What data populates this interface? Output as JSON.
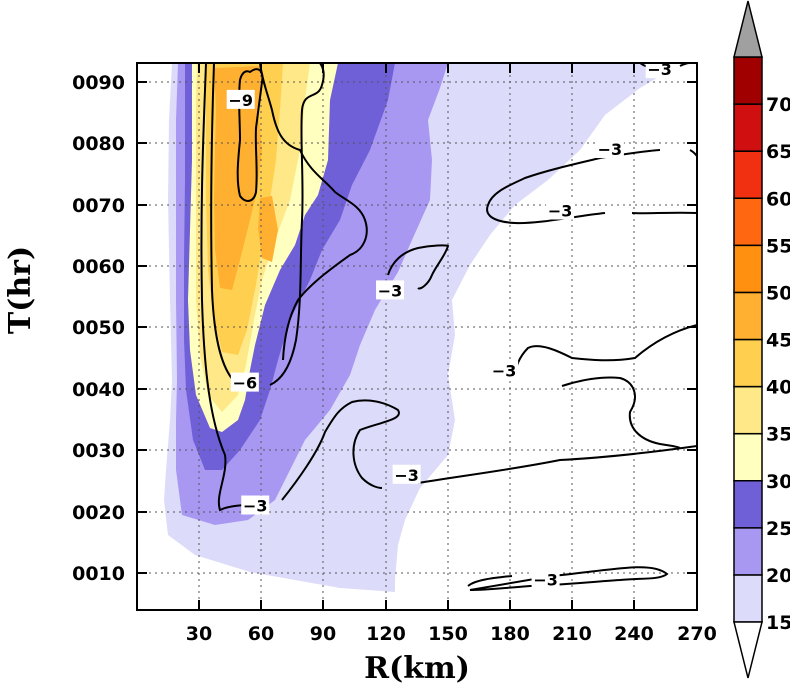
{
  "chart_data": {
    "type": "heatmap",
    "title": "",
    "xlabel": "R(km)",
    "ylabel": "T(hr)",
    "x_ticks": [
      "30",
      "60",
      "90",
      "120",
      "150",
      "180",
      "210",
      "240",
      "270"
    ],
    "y_ticks": [
      "0010",
      "0020",
      "0030",
      "0040",
      "0050",
      "0060",
      "0070",
      "0080",
      "0090"
    ],
    "xlim": [
      0,
      270
    ],
    "ylim": [
      4,
      93
    ],
    "grid": true,
    "colorbar": {
      "levels": [
        "15",
        "20",
        "25",
        "30",
        "35",
        "40",
        "45",
        "50",
        "55",
        "60",
        "65",
        "70"
      ],
      "colors": [
        "#ffffff",
        "#dcdcfa",
        "#a898f2",
        "#7060d8",
        "#ffffc0",
        "#ffe888",
        "#ffd050",
        "#ffb030",
        "#ff9010",
        "#ff6810",
        "#f03010",
        "#d01010",
        "#a00000",
        "#a0a0a0"
      ],
      "extend": "both"
    },
    "filled_bands": [
      {
        "threshold": "15",
        "color": "#dcdcfa"
      },
      {
        "threshold": "20",
        "color": "#a898f2"
      },
      {
        "threshold": "25",
        "color": "#7060d8"
      },
      {
        "threshold": "30",
        "color": "#ffffc0"
      },
      {
        "threshold": "35",
        "color": "#ffe888"
      },
      {
        "threshold": "40",
        "color": "#ffd050"
      },
      {
        "threshold": "45",
        "color": "#ffb030"
      }
    ],
    "contour_labels": [
      {
        "text": "-9",
        "r": 50,
        "t": 87
      },
      {
        "text": "-6",
        "r": 52,
        "t": 41
      },
      {
        "text": "-3",
        "r": 122,
        "t": 56
      },
      {
        "text": "-3",
        "r": 57,
        "t": 21
      },
      {
        "text": "-3",
        "r": 130,
        "t": 26
      },
      {
        "text": "-3",
        "r": 177,
        "t": 43
      },
      {
        "text": "-3",
        "r": 197,
        "t": 9
      },
      {
        "text": "-3",
        "r": 228,
        "t": 79
      },
      {
        "text": "-3",
        "r": 204,
        "t": 69
      },
      {
        "text": "-3",
        "r": 252,
        "t": 92
      }
    ]
  }
}
